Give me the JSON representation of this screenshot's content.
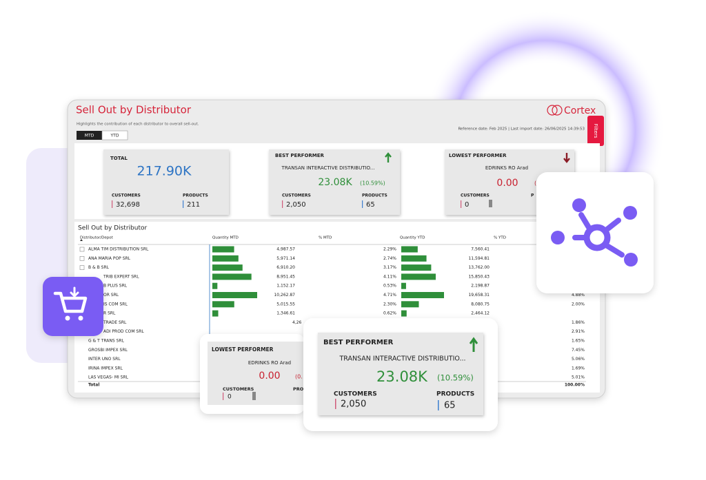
{
  "dashboard": {
    "title": "Sell Out by Distributor",
    "subtitle": "Highlights the contribution of each distributor to overall sell-out.",
    "logo": "Cortex",
    "reference": "Reference date: Feb 2025 | Last import date: 26/06/2025 14:39:53",
    "filters": "Filters",
    "tabs": [
      "MTD",
      "YTD"
    ],
    "total": {
      "label": "TOTAL",
      "value": "217.90K",
      "customers_label": "CUSTOMERS",
      "customers": "32,698",
      "products_label": "PRODUCTS",
      "products": "211"
    },
    "best": {
      "label": "BEST PERFORMER",
      "name": "TRANSAN INTERACTIVE DISTRIBUTIO...",
      "value": "23.08K",
      "share": "(10.59%)",
      "customers_label": "CUSTOMERS",
      "customers": "2,050",
      "products_label": "PRODUCTS",
      "products": "65"
    },
    "lowest": {
      "label": "LOWEST PERFORMER",
      "name": "EDRINKS RO Arad",
      "value": "0.00",
      "share": "(",
      "customers_label": "CUSTOMERS",
      "customers": "0",
      "products_label": "P"
    },
    "table": {
      "title": "Sell Out by Distributor",
      "columns": [
        "Distributor/Depot",
        "Quantity MTD",
        "% MTD",
        "Quantity YTD",
        "% YTD"
      ],
      "rows": [
        {
          "name": "ALMA TIM DISTRIBUTION SRL",
          "mtd": {
            "value": 4987.57,
            "label": "4,987.57"
          },
          "mtd_pct": "2.29%",
          "ytd": {
            "value": 7560.41,
            "label": "7,560.41"
          }
        },
        {
          "name": "ANA MARIA POP SRL",
          "mtd": {
            "value": 5971.14,
            "label": "5,971.14"
          },
          "mtd_pct": "2.74%",
          "ytd": {
            "value": 11594.81,
            "label": "11,594.81"
          }
        },
        {
          "name": "B & B SRL",
          "mtd": {
            "value": 6910.2,
            "label": "6,910.20"
          },
          "mtd_pct": "3.17%",
          "ytd": {
            "value": 13762,
            "label": "13,762.00"
          }
        },
        {
          "name": "TRIB EXPERT SRL",
          "mtd": {
            "value": 8951.45,
            "label": "8,951.45"
          },
          "mtd_pct": "4.11%",
          "ytd": {
            "value": 15850.43,
            "label": "15,850.43"
          }
        },
        {
          "name": "B PLUS SRL",
          "mtd": {
            "value": 1152.17,
            "label": "1,152.17"
          },
          "mtd_pct": "0.53%",
          "ytd": {
            "value": 2198.87,
            "label": "2,198.87"
          }
        },
        {
          "name": "OR SRL",
          "mtd": {
            "value": 10262.87,
            "label": "10,262.87"
          },
          "mtd_pct": "4.71%",
          "ytd": {
            "value": 19658.31,
            "label": "19,658.31"
          },
          "ytd_pct": "4.88%"
        },
        {
          "name": "IS COM SRL",
          "mtd": {
            "value": 5015.55,
            "label": "5,015.55"
          },
          "mtd_pct": "2.30%",
          "ytd": {
            "value": 8080.75,
            "label": "8,080.75"
          },
          "ytd_pct": "2.00%"
        },
        {
          "name": "R SRL",
          "mtd": {
            "value": 1346.61,
            "label": "1,346.61"
          },
          "mtd_pct": "0.62%",
          "ytd": {
            "value": 2464.12,
            "label": "2,464.12"
          }
        },
        {
          "name": "TRADE SRL",
          "mtd": {
            "label": "4,26"
          },
          "ytd_pct": "1.86%"
        },
        {
          "name": "ADI PROD COM SRL",
          "ytd_pct": "2.91%"
        },
        {
          "name": "G & T TRANS SRL",
          "ytd_pct": "1.65%"
        },
        {
          "name": "GROSBI IMPEX SRL",
          "ytd_pct": "7.45%"
        },
        {
          "name": "INTER UNO SRL",
          "ytd_pct": "5.06%"
        },
        {
          "name": "IRINA IMPEX SRL",
          "ytd_pct": "1.69%"
        },
        {
          "name": "LAS VEGAS- MI SRL",
          "ytd_pct": "5.01%"
        }
      ],
      "total": {
        "label": "Total",
        "ytd_pct": "100.00%"
      }
    }
  },
  "floating_lowest": {
    "label": "LOWEST PERFORMER",
    "name": "EDRINKS RO Arad",
    "value": "0.00",
    "share": "(0.",
    "customers_label": "CUSTOMERS",
    "customers": "0",
    "products_label": "PRO"
  },
  "floating_best": {
    "label": "BEST PERFORMER",
    "name": "TRANSAN INTERACTIVE DISTRIBUTIO...",
    "value": "23.08K",
    "share": "(10.59%)",
    "customers_label": "CUSTOMERS",
    "customers": "2,050",
    "products_label": "PRODUCTS",
    "products": "65"
  }
}
